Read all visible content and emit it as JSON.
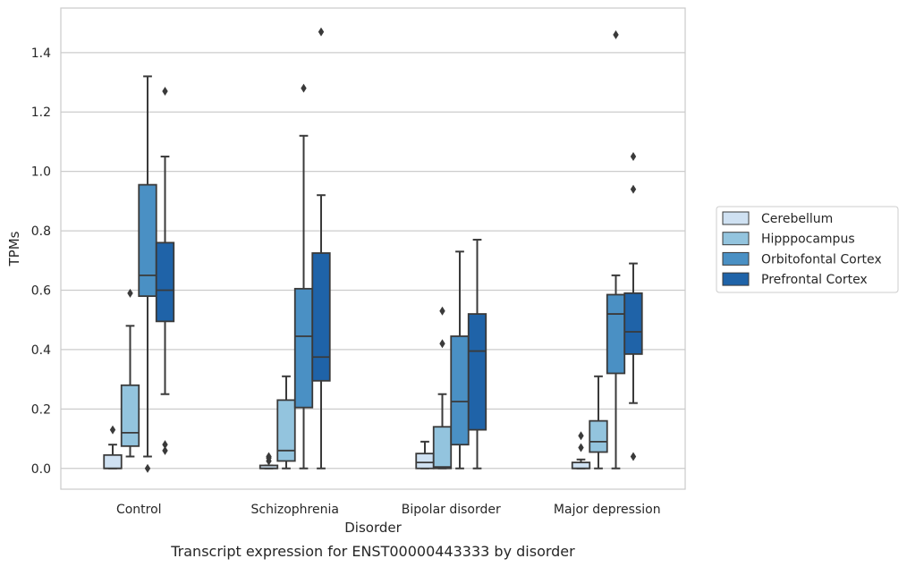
{
  "chart_data": {
    "type": "box",
    "xlabel": "Disorder",
    "ylabel": "TPMs",
    "caption": "Transcript expression for ENST00000443333 by disorder",
    "ylim": [
      -0.07,
      1.55
    ],
    "yticks": [
      0.0,
      0.2,
      0.4,
      0.6,
      0.8,
      1.0,
      1.2,
      1.4
    ],
    "ytick_labels": [
      "0.0",
      "0.2",
      "0.4",
      "0.6",
      "0.8",
      "1.0",
      "1.2",
      "1.4"
    ],
    "grid": "horizontal",
    "legend_position": "right",
    "categories": [
      "Control",
      "Schizophrenia",
      "Bipolar disorder",
      "Major depression"
    ],
    "series": [
      {
        "name": "Cerebellum",
        "color": "#cfe1f2",
        "boxes": [
          {
            "whislo": 0.0,
            "q1": 0.0,
            "med": 0.0,
            "q3": 0.045,
            "whishi": 0.08,
            "fliers": [
              0.13
            ]
          },
          {
            "whislo": 0.0,
            "q1": 0.0,
            "med": 0.0,
            "q3": 0.01,
            "whishi": 0.01,
            "fliers": [
              0.025,
              0.035,
              0.04
            ]
          },
          {
            "whislo": 0.0,
            "q1": 0.0,
            "med": 0.02,
            "q3": 0.05,
            "whishi": 0.09,
            "fliers": []
          },
          {
            "whislo": 0.0,
            "q1": 0.0,
            "med": 0.0,
            "q3": 0.02,
            "whishi": 0.03,
            "fliers": [
              0.07,
              0.11
            ]
          }
        ]
      },
      {
        "name": "Hipppocampus",
        "color": "#93c4de",
        "boxes": [
          {
            "whislo": 0.04,
            "q1": 0.075,
            "med": 0.12,
            "q3": 0.28,
            "whishi": 0.48,
            "fliers": [
              0.59
            ]
          },
          {
            "whislo": 0.0,
            "q1": 0.025,
            "med": 0.06,
            "q3": 0.23,
            "whishi": 0.31,
            "fliers": []
          },
          {
            "whislo": 0.0,
            "q1": 0.0,
            "med": 0.005,
            "q3": 0.14,
            "whishi": 0.25,
            "fliers": [
              0.42,
              0.53
            ]
          },
          {
            "whislo": 0.0,
            "q1": 0.055,
            "med": 0.09,
            "q3": 0.16,
            "whishi": 0.31,
            "fliers": []
          }
        ]
      },
      {
        "name": "Orbitofontal Cortex",
        "color": "#4a90c4",
        "boxes": [
          {
            "whislo": 0.04,
            "q1": 0.58,
            "med": 0.65,
            "q3": 0.955,
            "whishi": 1.32,
            "fliers": [
              0.0
            ]
          },
          {
            "whislo": 0.0,
            "q1": 0.205,
            "med": 0.445,
            "q3": 0.605,
            "whishi": 1.12,
            "fliers": [
              1.28
            ]
          },
          {
            "whislo": 0.0,
            "q1": 0.08,
            "med": 0.225,
            "q3": 0.445,
            "whishi": 0.73,
            "fliers": []
          },
          {
            "whislo": 0.0,
            "q1": 0.32,
            "med": 0.52,
            "q3": 0.585,
            "whishi": 0.65,
            "fliers": [
              1.46
            ]
          }
        ]
      },
      {
        "name": "Prefrontal Cortex",
        "color": "#1f63a8",
        "boxes": [
          {
            "whislo": 0.25,
            "q1": 0.495,
            "med": 0.6,
            "q3": 0.76,
            "whishi": 1.05,
            "fliers": [
              1.27,
              0.08,
              0.06
            ]
          },
          {
            "whislo": 0.0,
            "q1": 0.295,
            "med": 0.375,
            "q3": 0.725,
            "whishi": 0.92,
            "fliers": [
              1.47
            ]
          },
          {
            "whislo": 0.0,
            "q1": 0.13,
            "med": 0.395,
            "q3": 0.52,
            "whishi": 0.77,
            "fliers": []
          },
          {
            "whislo": 0.22,
            "q1": 0.385,
            "med": 0.46,
            "q3": 0.59,
            "whishi": 0.69,
            "fliers": [
              1.05,
              0.94,
              0.04
            ]
          }
        ]
      }
    ]
  }
}
